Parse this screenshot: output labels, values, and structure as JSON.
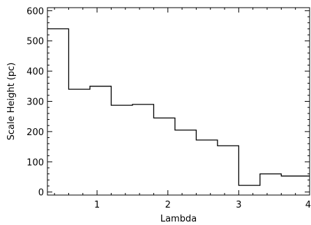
{
  "chart_data": {
    "type": "line",
    "style": "step",
    "xlabel": "Lambda",
    "ylabel": "Scale Height (pc)",
    "xlim": [
      0.3,
      4.0
    ],
    "ylim": [
      -10,
      610
    ],
    "x_ticks": [
      1,
      2,
      3,
      4
    ],
    "x_tick_labels": [
      "1",
      "2",
      "3",
      "4"
    ],
    "y_ticks": [
      0,
      100,
      200,
      300,
      400,
      500,
      600
    ],
    "y_tick_labels": [
      "0",
      "100",
      "200",
      "300",
      "400",
      "500",
      "600"
    ],
    "grid": false,
    "series": [
      {
        "bin_edges": [
          0.3,
          0.6,
          0.9,
          1.2,
          1.5,
          1.8,
          2.1,
          2.4,
          2.7,
          3.0,
          3.3,
          3.6,
          4.0
        ],
        "values": [
          540,
          340,
          350,
          287,
          290,
          245,
          205,
          172,
          153,
          22,
          60,
          53
        ]
      }
    ]
  }
}
